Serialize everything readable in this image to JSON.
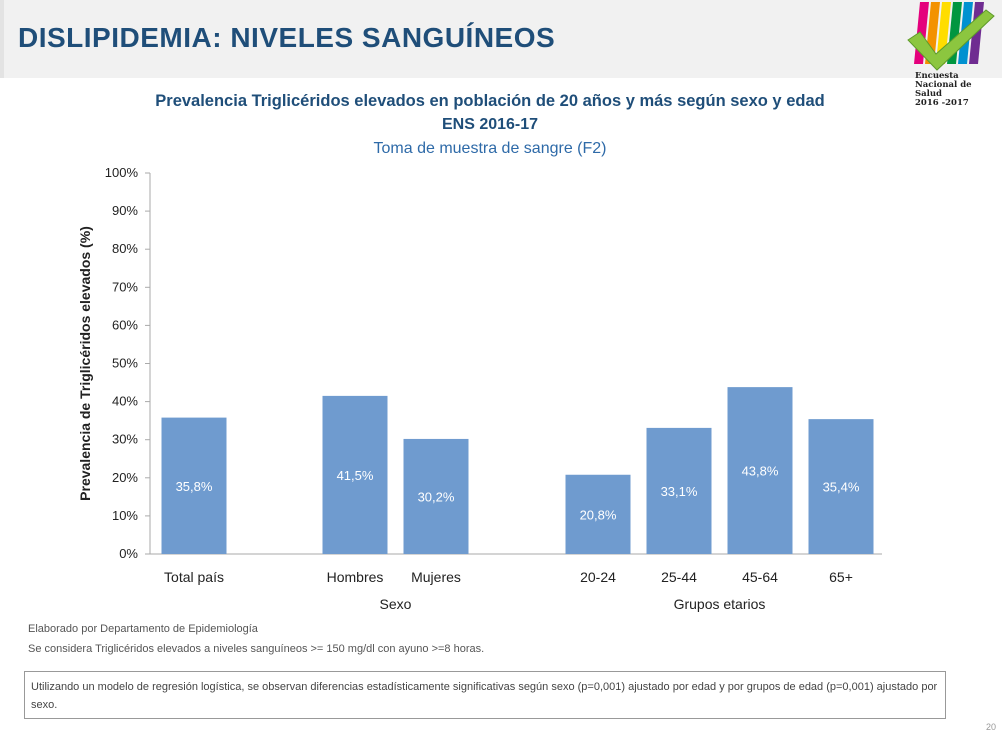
{
  "header": {
    "title": "DISLIPIDEMIA: NIVELES SANGUÍNEOS"
  },
  "logo": {
    "lines": [
      "Encuesta",
      "Nacional de",
      "Salud",
      "2016 -2017"
    ],
    "stripe_colors": [
      "#e4007c",
      "#f39200",
      "#ffdd00",
      "#009640",
      "#0091d0",
      "#6f2c91"
    ],
    "check_color": "#8cc63f"
  },
  "chart_data": {
    "type": "bar",
    "title": "Prevalencia Triglicéridos elevados en población de 20 años y más según sexo y edad",
    "title2": "ENS 2016-17",
    "subtitle": "Toma de muestra de sangre (F2)",
    "ylabel": "Prevalencia de Triglicéridos elevados  (%)",
    "ylim": [
      0,
      100
    ],
    "yticks": [
      "0%",
      "10%",
      "20%",
      "30%",
      "40%",
      "50%",
      "60%",
      "70%",
      "80%",
      "90%",
      "100%"
    ],
    "categories": [
      "Total país",
      "Hombres",
      "Mujeres",
      "20-24",
      "25-44",
      "45-64",
      "65+"
    ],
    "values": [
      35.8,
      41.5,
      30.2,
      20.8,
      33.1,
      43.8,
      35.4
    ],
    "data_labels": [
      "35,8%",
      "41,5%",
      "30,2%",
      "20,8%",
      "33,1%",
      "43,8%",
      "35,4%"
    ],
    "groups": [
      {
        "label": "",
        "categories": [
          "Total país"
        ]
      },
      {
        "label": "Sexo",
        "categories": [
          "Hombres",
          "Mujeres"
        ]
      },
      {
        "label": "Grupos etarios",
        "categories": [
          "20-24",
          "25-44",
          "45-64",
          "65+"
        ]
      }
    ],
    "bar_color": "#6f9bcf",
    "grid": false
  },
  "notes": {
    "line1": "Elaborado por Departamento de Epidemiología",
    "line2": "Se considera Triglicéridos elevados a niveles sanguíneos >= 150 mg/dl con ayuno >=8 horas.",
    "boxed": "Utilizando un modelo de regresión logística, se observan diferencias estadísticamente significativas según sexo (p=0,001) ajustado por edad y por grupos de edad (p=0,001) ajustado por sexo."
  },
  "page_number": "20"
}
